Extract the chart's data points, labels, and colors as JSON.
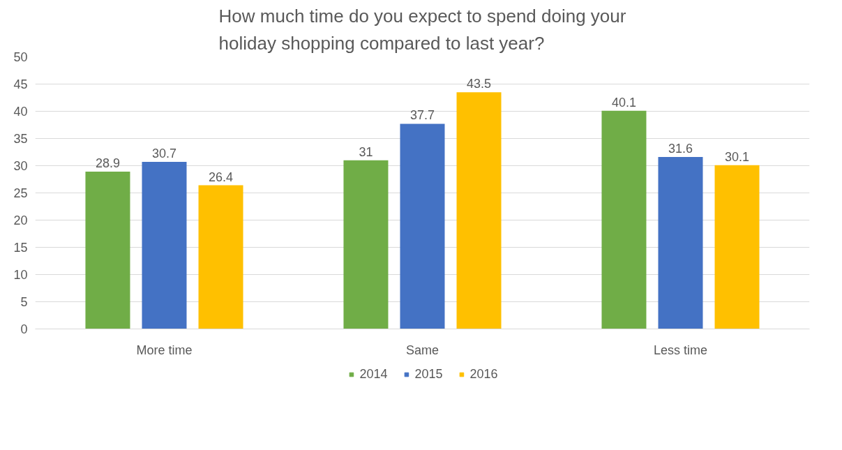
{
  "chart_data": {
    "type": "bar",
    "title": "How much time do you expect to spend doing your holiday shopping compared to last year?",
    "categories": [
      "More time",
      "Same",
      "Less time"
    ],
    "series": [
      {
        "name": "2014",
        "color": "#70ad47",
        "values": [
          28.9,
          31,
          40.1
        ]
      },
      {
        "name": "2015",
        "color": "#4472c4",
        "values": [
          30.7,
          37.7,
          31.6
        ]
      },
      {
        "name": "2016",
        "color": "#ffc000",
        "values": [
          26.4,
          43.5,
          30.1
        ]
      }
    ],
    "ylim": [
      0,
      50
    ],
    "yticks": [
      0,
      5,
      10,
      15,
      20,
      25,
      30,
      35,
      40,
      45,
      50
    ],
    "grid": "y",
    "legend": "bottom",
    "data_labels": true
  }
}
